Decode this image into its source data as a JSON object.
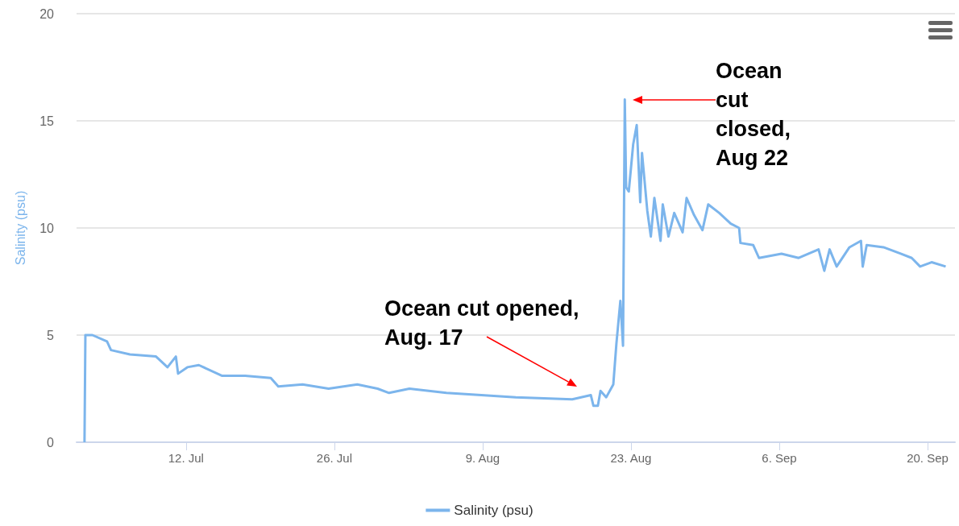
{
  "chart_data": {
    "type": "line",
    "ylabel": "Salinity (psu)",
    "xlim": [
      "--07-01T16:00",
      "--09-22T14:00"
    ],
    "xticks": [
      {
        "value": "--07-12",
        "label": "12. Jul"
      },
      {
        "value": "--07-26",
        "label": "26. Jul"
      },
      {
        "value": "--08-09",
        "label": "9. Aug"
      },
      {
        "value": "--08-23",
        "label": "23. Aug"
      },
      {
        "value": "--09-06",
        "label": "6. Sep"
      },
      {
        "value": "--09-20",
        "label": "20. Sep"
      }
    ],
    "ylim": [
      0,
      20
    ],
    "yticks": [
      0,
      5,
      10,
      15,
      20
    ],
    "grid": "y",
    "legend": "bottom",
    "marker": "none",
    "series": [
      {
        "name": "Salinity (psu)",
        "color": "#7cb5ec",
        "x": [
          "--07-02T10:00",
          "--07-02T12:00",
          "--07-03T04:00",
          "--07-04T13:00",
          "--07-04T22:00",
          "--07-06T17:00",
          "--07-09T04:00",
          "--07-10T06:00",
          "--07-11T01:00",
          "--07-11T06:00",
          "--07-12T03:00",
          "--07-13T05:00",
          "--07-15T10:00",
          "--07-17T14:00",
          "--07-20T00:00",
          "--07-20T17:00",
          "--07-23T00:00",
          "--07-25T11:00",
          "--07-28T04:00",
          "--07-30T02:00",
          "--07-31T04:00",
          "--08-02T02:00",
          "--08-05T14:00",
          "--08-08T21:00",
          "--08-12T03:00",
          "--08-17T11:00",
          "--08-19T05:00",
          "--08-19T11:00",
          "--08-19T21:00",
          "--08-20T03:00",
          "--08-20T16:00",
          "--08-21T08:00",
          "--08-21T15:00",
          "--08-22T00:00",
          "--08-22T06:00",
          "--08-22T10:00",
          "--08-22T13:00",
          "--08-22T19:00",
          "--08-23T05:00",
          "--08-23T13:00",
          "--08-23T21:00",
          "--08-24T01:00",
          "--08-24T13:00",
          "--08-24T21:00",
          "--08-25T05:00",
          "--08-25T19:00",
          "--08-26T00:00",
          "--08-26T13:00",
          "--08-27T02:00",
          "--08-27T21:00",
          "--08-28T06:00",
          "--08-28T23:00",
          "--08-29T18:00",
          "--08-30T07:00",
          "--08-31T08:00",
          "--09-01T10:00",
          "--09-02T05:00",
          "--09-02T08:00",
          "--09-03T13:00",
          "--09-04T02:00",
          "--09-06T05:00",
          "--09-07T20:00",
          "--09-09T17:00",
          "--09-10T06:00",
          "--09-10T18:00",
          "--09-11T10:00",
          "--09-12T15:00",
          "--09-13T17:00",
          "--09-13T21:00",
          "--09-14T06:00",
          "--09-15T20:00",
          "--09-17T11:00",
          "--09-18T12:00",
          "--09-19T07:00",
          "--09-20T09:00",
          "--09-21T17:00"
        ],
        "values": [
          0,
          5.0,
          5.0,
          4.7,
          4.3,
          4.1,
          4.0,
          3.5,
          4.0,
          3.2,
          3.5,
          3.6,
          3.1,
          3.1,
          3.0,
          2.6,
          2.7,
          2.5,
          2.7,
          2.5,
          2.3,
          2.5,
          2.3,
          2.2,
          2.1,
          2.0,
          2.2,
          1.7,
          1.7,
          2.4,
          2.1,
          2.7,
          4.6,
          6.6,
          4.5,
          16.0,
          11.9,
          11.7,
          13.9,
          14.8,
          11.2,
          13.5,
          10.8,
          9.6,
          11.4,
          9.4,
          11.1,
          9.6,
          10.7,
          9.8,
          11.4,
          10.6,
          9.9,
          11.1,
          10.7,
          10.2,
          10.0,
          9.3,
          9.2,
          8.6,
          8.8,
          8.6,
          9.0,
          8.0,
          9.0,
          8.2,
          9.1,
          9.4,
          8.2,
          9.2,
          9.1,
          8.8,
          8.6,
          8.2,
          8.4,
          8.2
        ]
      }
    ],
    "annotations": [
      "Ocean cut opened,\nAug. 17",
      "Ocean\ncut\nclosed,\nAug 22"
    ]
  }
}
